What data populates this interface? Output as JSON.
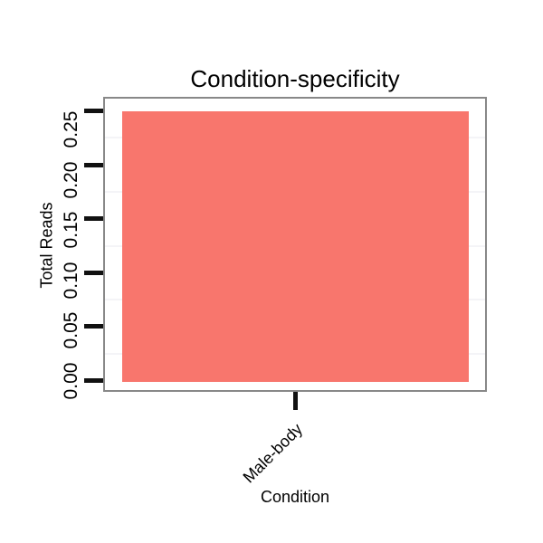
{
  "chart_data": {
    "type": "bar",
    "title": "Condition-specificity",
    "xlabel": "Condition",
    "ylabel": "Total Reads",
    "categories": [
      "Male-body"
    ],
    "values": [
      0.25
    ],
    "bar_color": "#F8766D",
    "ylim": [
      -0.011,
      0.263
    ],
    "yticks": [
      0,
      0.05,
      0.1,
      0.15,
      0.2,
      0.25
    ],
    "ytick_labels": [
      "0.00",
      "0.05",
      "0.10",
      "0.15",
      "0.20",
      "0.25"
    ],
    "minor_gridlines": [
      0.025,
      0.075,
      0.125,
      0.175,
      0.225
    ],
    "grid": "minor horizontal only",
    "legend_position": "none",
    "x_tick_label_angle_deg": 45,
    "y_tick_label_angle_deg": 90,
    "panel_border_color": "#888888",
    "grid_color": "#f4f4f7",
    "tick_color": "#111111",
    "text_color": "#000000",
    "background_color": "#ffffff"
  }
}
